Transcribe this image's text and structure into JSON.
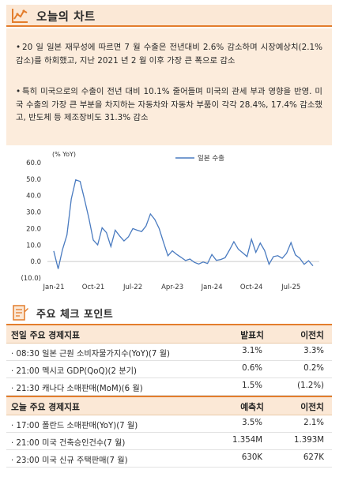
{
  "section1": {
    "title": "오늘의 차트"
  },
  "summary": {
    "bullets": [
      "20 일 일본 재무성에 따르면 7 월 수출은 전년대비 2.6% 감소하며 시장예상치(2.1% 감소)를 하회했고, 지난 2021 년 2 월 이후 가장 큰 폭으로 감소",
      "특히 미국으로의 수출이 전년 대비 10.1% 줄어들며 미국의 관세 부과 영향을 반영. 미국 수출의 가장 큰 부분을 차지하는 자동차와 자동차 부품이 각각 28.4%, 17.4% 감소했고, 반도체 등 제조장비도 31.3% 감소"
    ]
  },
  "chart_data": {
    "type": "line",
    "unit_label": "(% YoY)",
    "series": [
      {
        "name": "일본 수출",
        "color": "#4a7bc0",
        "values": [
          6.4,
          -4.5,
          7.3,
          16.1,
          38.0,
          49.6,
          48.6,
          37.8,
          26.2,
          13.0,
          10.1,
          20.5,
          17.5,
          9.1,
          19.0,
          15.5,
          12.5,
          15.0,
          20.0,
          19.0,
          18.2,
          21.5,
          28.9,
          25.5,
          20.0,
          11.5,
          3.5,
          6.5,
          4.3,
          2.5,
          0.6,
          1.5,
          -0.5,
          -1.5,
          -0.3,
          -1.2,
          4.3,
          0.7,
          1.2,
          2.3,
          7.0,
          12.0,
          7.5,
          5.3,
          3.0,
          13.5,
          5.6,
          11.2,
          6.7,
          -1.7,
          3.0,
          3.5,
          2.0,
          5.0,
          11.5,
          4.0,
          2.0,
          -1.7,
          0.5,
          -2.6
        ]
      }
    ],
    "x_tick_labels": [
      "Jan-21",
      "Oct-21",
      "Jul-22",
      "Apr-23",
      "Jan-24",
      "Oct-24",
      "Jul-25"
    ],
    "y_tick_labels": [
      "60.0",
      "50.0",
      "40.0",
      "30.0",
      "20.0",
      "10.0",
      "0.0",
      "(10.0)"
    ],
    "ylim": [
      -10,
      60
    ],
    "legend_position": "top-right"
  },
  "section2": {
    "title": "주요 체크 포인트"
  },
  "table_prev": {
    "headers": [
      "전일 주요 경제지표",
      "발표치",
      "이전치"
    ],
    "rows": [
      [
        "· 08:30 일본 근원 소비자물가지수(YoY)(7 월)",
        "3.1%",
        "3.3%"
      ],
      [
        "· 21:00 멕시코 GDP(QoQ)(2 분기)",
        "0.6%",
        "0.2%"
      ],
      [
        "· 21:30 캐나다 소매판매(MoM)(6 월)",
        "1.5%",
        "(1.2%)"
      ]
    ]
  },
  "table_today": {
    "headers": [
      "오늘 주요 경제지표",
      "예측치",
      "이전치"
    ],
    "rows": [
      [
        "· 17:00 폴란드 소매판매(YoY)(7 월)",
        "3.5%",
        "2.1%"
      ],
      [
        "· 21:00 미국 건축승인건수(7 월)",
        "1.354M",
        "1.393M"
      ],
      [
        "· 23:00 미국 신규 주택판매(7 월)",
        "630K",
        "627K"
      ]
    ]
  },
  "colors": {
    "accent": "#e37d2c",
    "header_bg": "#fbe8d6",
    "summary_bg": "#fcecdc",
    "line": "#4a7bc0"
  }
}
